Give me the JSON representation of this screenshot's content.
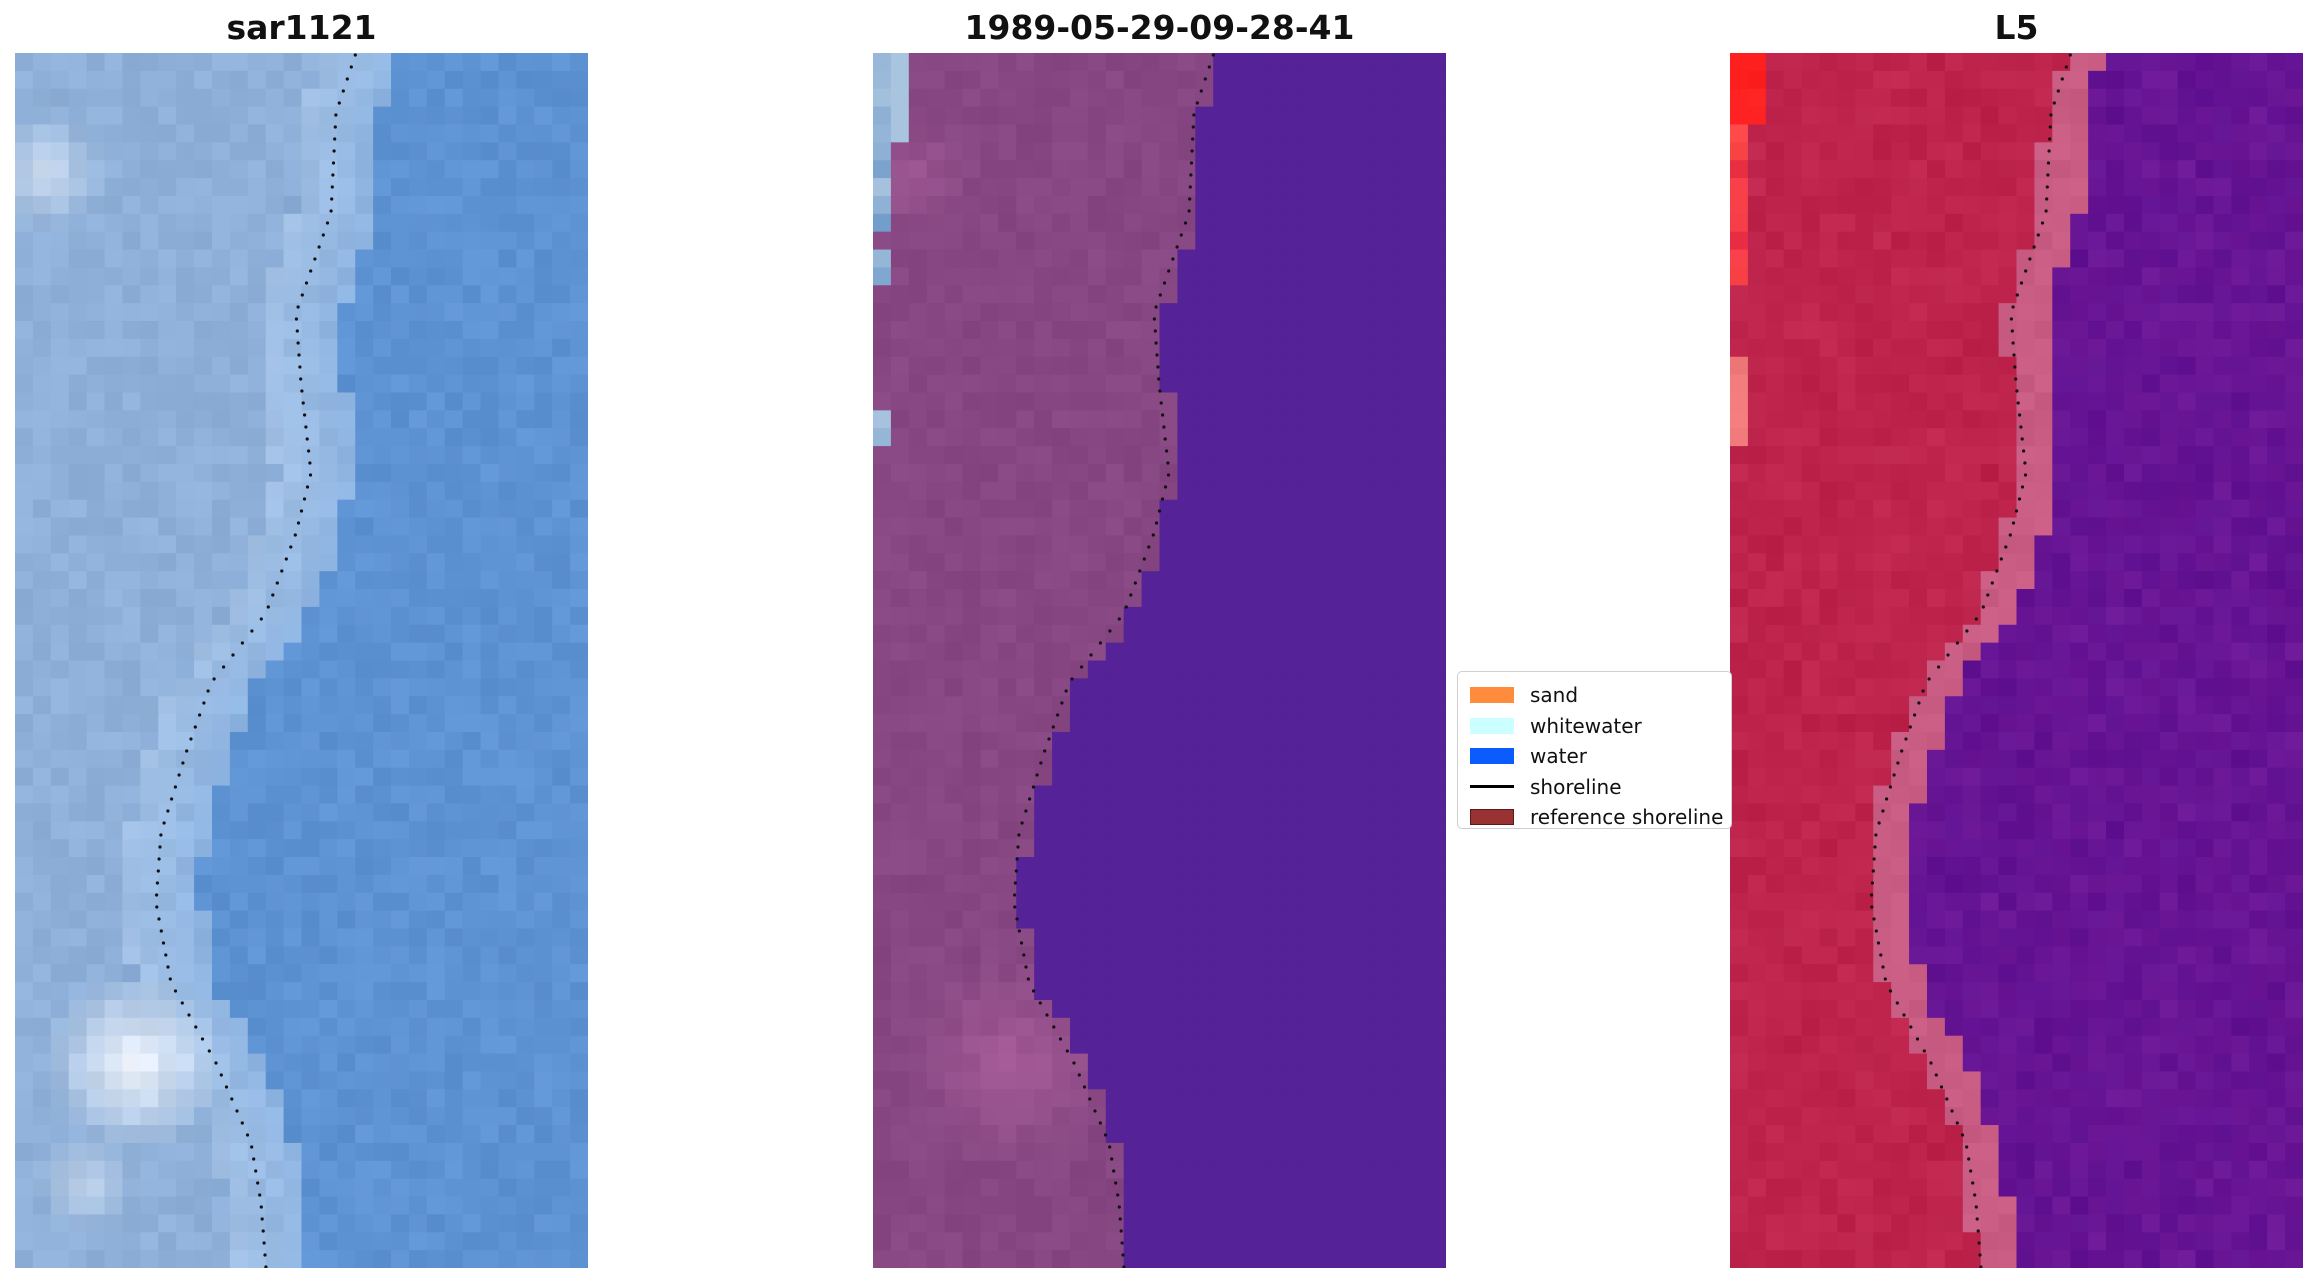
{
  "panels": [
    {
      "title": "sar1121",
      "variant": "rgb"
    },
    {
      "title": "1989-05-29-09-28-41",
      "variant": "classified"
    },
    {
      "title": "L5",
      "variant": "index"
    }
  ],
  "legend": {
    "items": [
      {
        "label": "sand",
        "color": "#ff8c3c",
        "kind": "patch"
      },
      {
        "label": "whitewater",
        "color": "#ccffff",
        "kind": "patch"
      },
      {
        "label": "water",
        "color": "#0a5cff",
        "kind": "patch"
      },
      {
        "label": "shoreline",
        "color": "#000000",
        "kind": "line"
      },
      {
        "label": "reference shoreline",
        "color": "#993333",
        "kind": "patch"
      }
    ]
  },
  "colors": {
    "rgb_water": "#5e93d3",
    "rgb_land": "#8fb0d8",
    "rgb_surf": "#b6d0ee",
    "rgb_foam": "#f4f8ff",
    "class_land": "#864782",
    "class_water": "#552397",
    "class_sand_tint": "#a45a96",
    "class_edge": "#a9c4df",
    "index_land": "#c0274f",
    "index_water": "#6c1796",
    "index_transition": "#c95c82",
    "index_hot": "#ff2020"
  }
}
